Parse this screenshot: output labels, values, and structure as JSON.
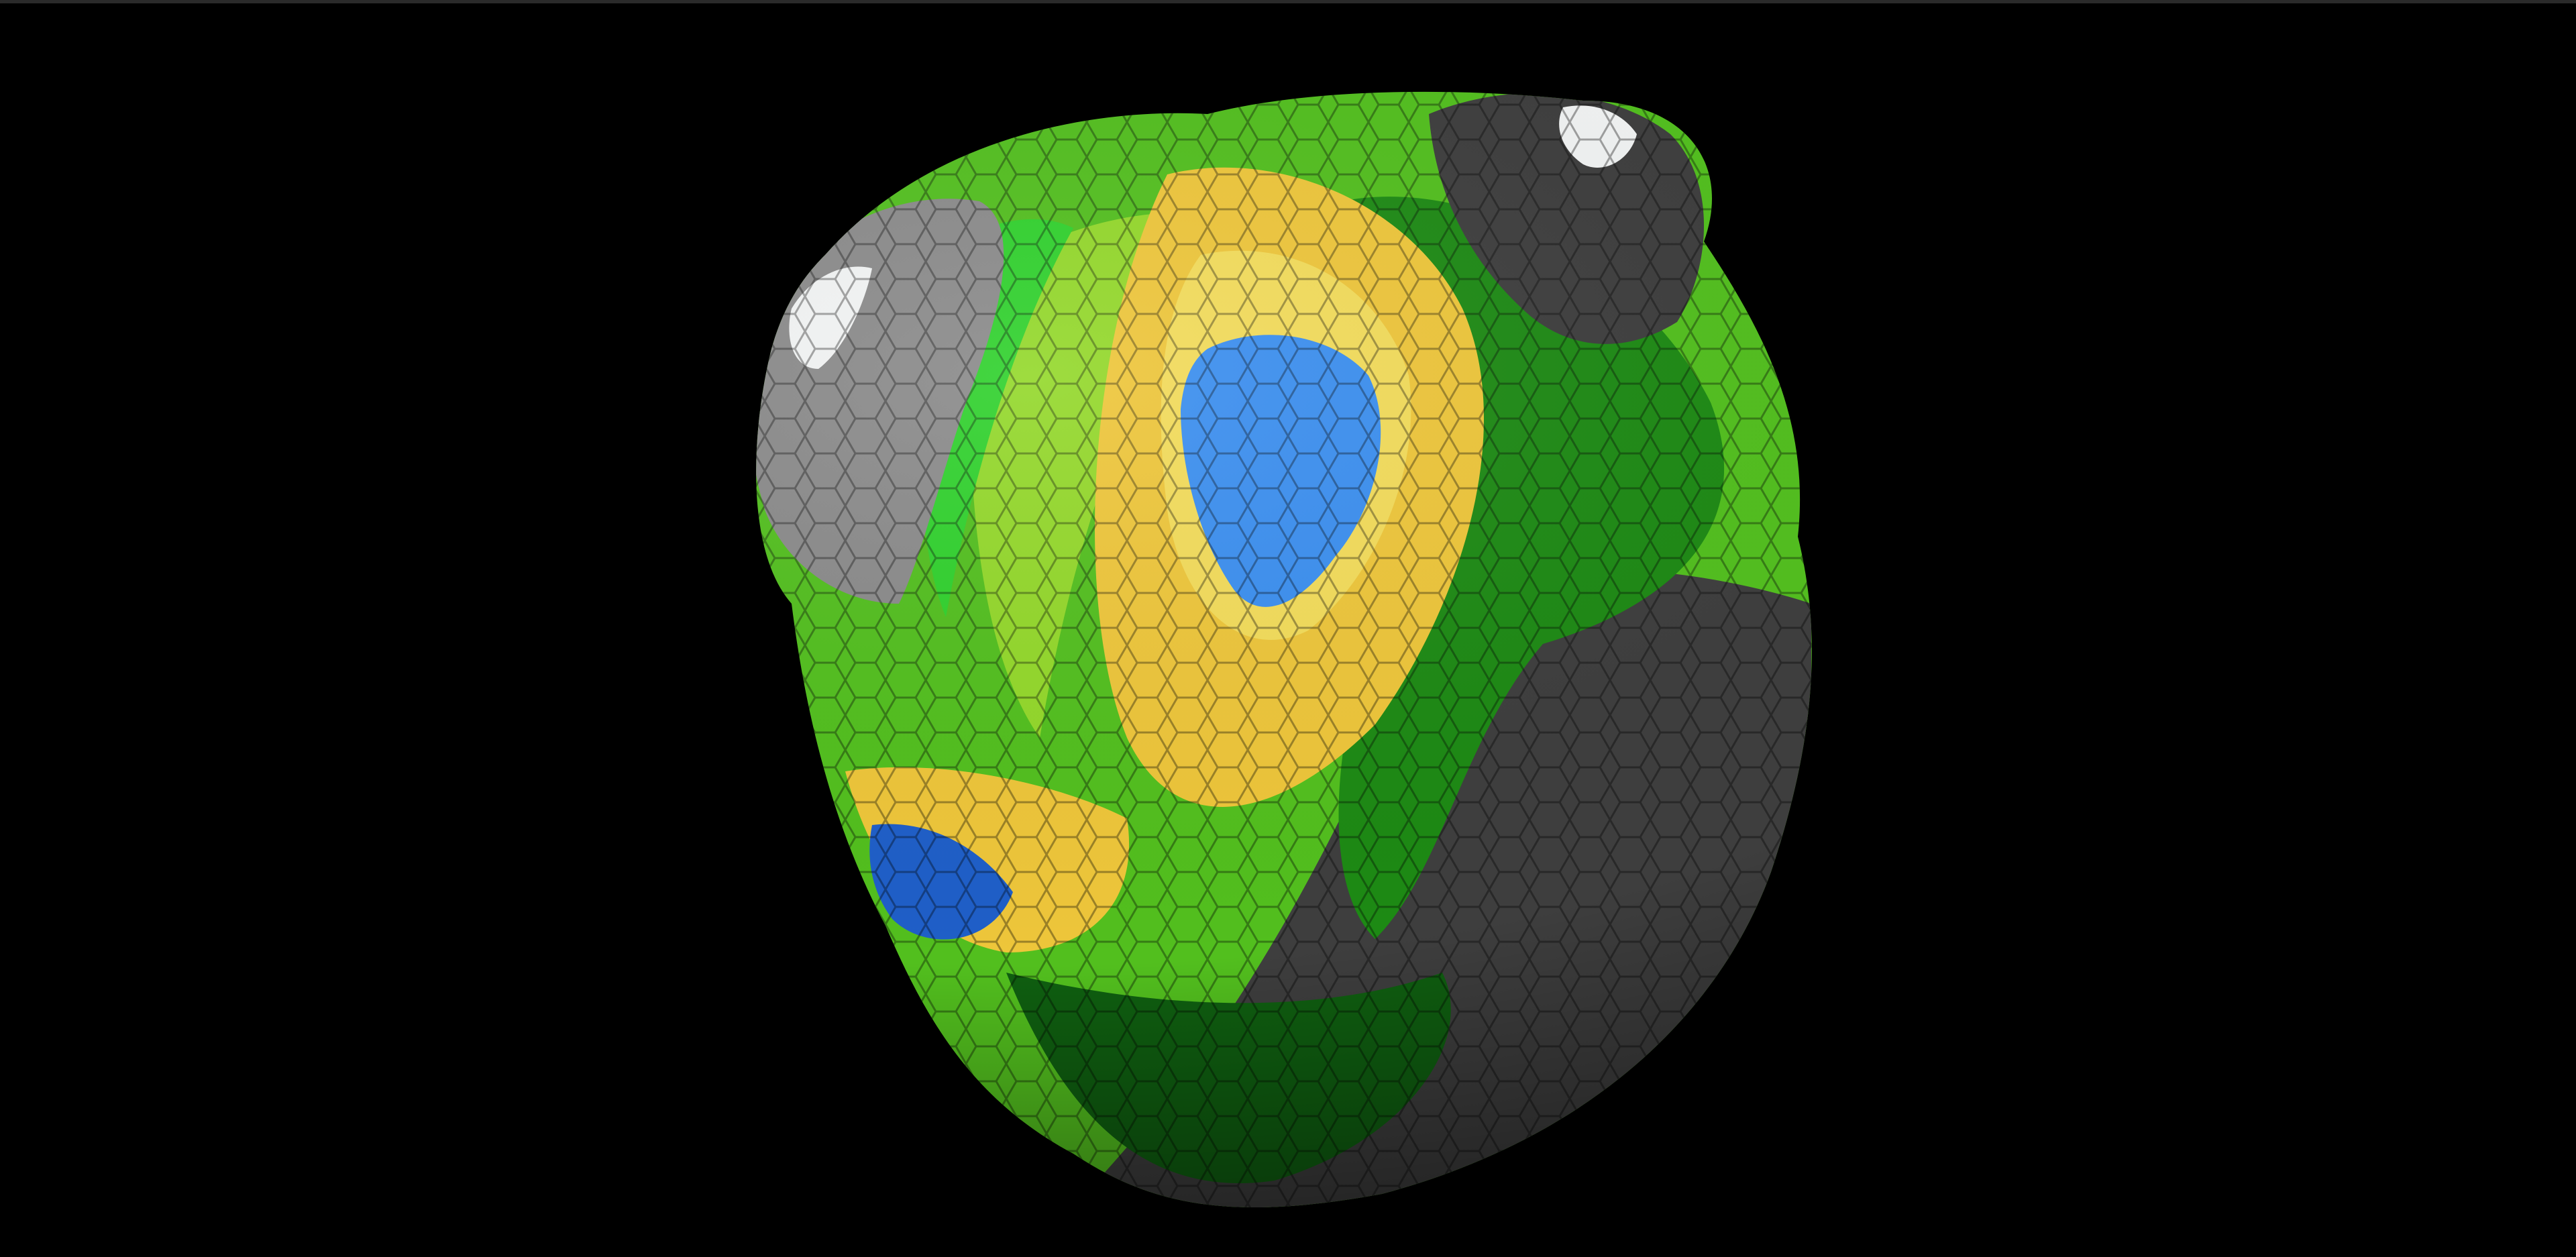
{
  "scene": {
    "background_color": "#000000",
    "top_border_color": "#2a2a2a",
    "object": "hexagon-tiled-planet",
    "terrain_colors": {
      "snow": "#f2f4f4",
      "rock_light": "#8a8a8a",
      "rock_dark": "#3e3e3e",
      "grass_bright": "#2fd12c",
      "grass": "#52bf1e",
      "grass_light": "#93d82a",
      "forest": "#1d8a14",
      "forest_dark": "#0f5f10",
      "sand": "#eec63a",
      "sand_light": "#f3dc5a",
      "water": "#3b8ff0",
      "water_deep": "#1f5fc8"
    }
  }
}
